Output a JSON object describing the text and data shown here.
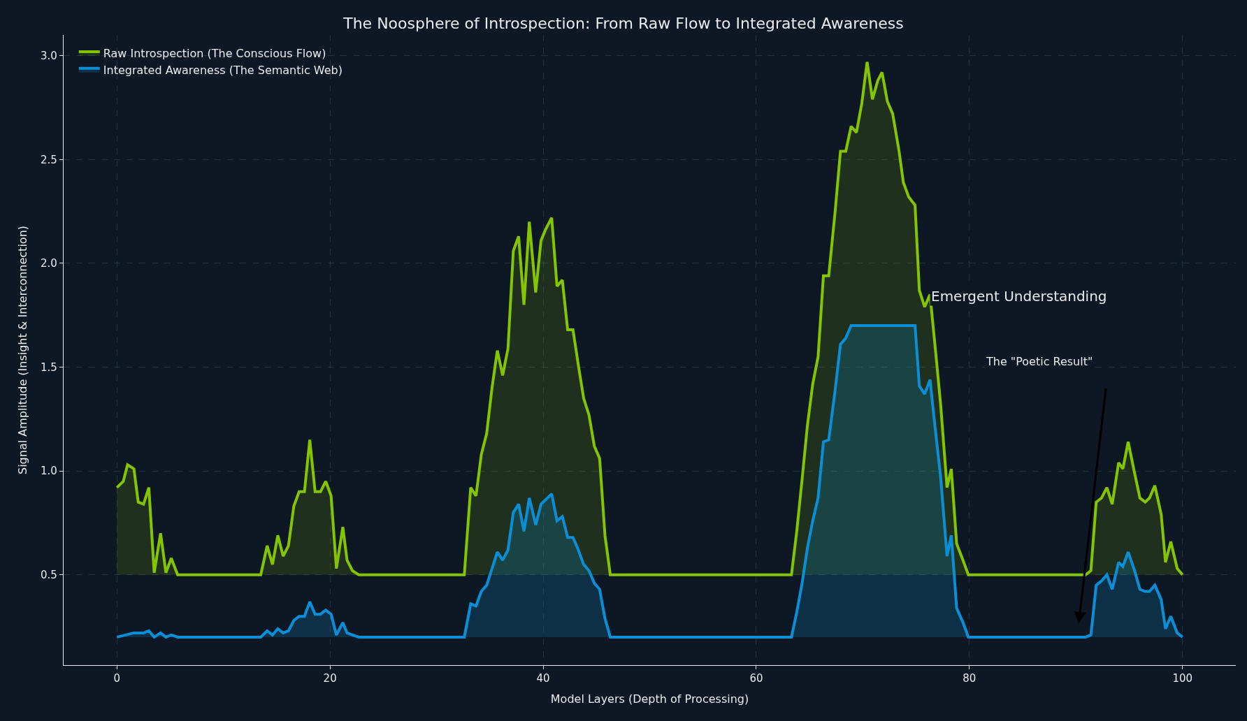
{
  "chart_data": {
    "type": "area",
    "title": "The Noosphere of Introspection: From Raw Flow to Integrated Awareness",
    "xlabel": "Model Layers (Depth of Processing)",
    "ylabel": "Signal Amplitude (Insight & Interconnection)",
    "series": [
      {
        "name": "Raw Introspection (The Conscious Flow)",
        "color": "#84c400",
        "x": [
          0,
          0.6,
          1.0,
          1.6,
          2.0,
          2.5,
          3.0,
          3.5,
          4.1,
          4.6,
          5.1,
          5.7,
          13.5,
          14.1,
          14.6,
          15.1,
          15.6,
          16.1,
          16.6,
          17.1,
          17.6,
          18.1,
          18.6,
          19.1,
          19.6,
          20.1,
          20.6,
          21.2,
          21.6,
          22.1,
          22.7,
          32.6,
          33.2,
          33.7,
          34.2,
          34.7,
          35.2,
          35.7,
          36.2,
          36.7,
          37.2,
          37.7,
          38.2,
          38.7,
          39.3,
          39.8,
          40.2,
          40.8,
          41.3,
          41.8,
          42.3,
          42.8,
          43.3,
          43.8,
          44.3,
          44.8,
          45.3,
          45.8,
          46.3,
          63.3,
          63.8,
          64.3,
          64.8,
          65.3,
          65.8,
          66.3,
          66.8,
          67.4,
          67.9,
          68.4,
          68.9,
          69.4,
          69.9,
          70.4,
          70.9,
          71.4,
          71.8,
          72.3,
          72.8,
          73.4,
          73.8,
          74.3,
          74.9,
          75.3,
          75.8,
          76.3,
          76.8,
          77.3,
          77.9,
          78.3,
          78.8,
          79.4,
          79.9,
          90.9,
          91.4,
          91.9,
          92.4,
          92.9,
          93.4,
          94.0,
          94.4,
          94.9,
          95.5,
          96.0,
          96.5,
          96.9,
          97.4,
          98.0,
          98.4,
          98.9,
          99.5,
          100
        ],
        "values": [
          0.92,
          0.95,
          1.03,
          1.01,
          0.85,
          0.84,
          0.92,
          0.51,
          0.7,
          0.51,
          0.58,
          0.5,
          0.5,
          0.64,
          0.55,
          0.69,
          0.59,
          0.64,
          0.83,
          0.9,
          0.9,
          1.15,
          0.9,
          0.9,
          0.95,
          0.88,
          0.53,
          0.73,
          0.57,
          0.52,
          0.5,
          0.5,
          0.92,
          0.88,
          1.08,
          1.18,
          1.4,
          1.58,
          1.46,
          1.59,
          2.06,
          2.13,
          1.8,
          2.2,
          1.86,
          2.11,
          2.16,
          2.22,
          1.89,
          1.92,
          1.68,
          1.68,
          1.51,
          1.35,
          1.27,
          1.12,
          1.06,
          0.69,
          0.5,
          0.5,
          0.71,
          0.96,
          1.22,
          1.42,
          1.55,
          1.94,
          1.94,
          2.25,
          2.54,
          2.54,
          2.66,
          2.63,
          2.77,
          2.97,
          2.79,
          2.88,
          2.92,
          2.78,
          2.72,
          2.54,
          2.39,
          2.32,
          2.28,
          1.87,
          1.79,
          1.85,
          1.59,
          1.32,
          0.92,
          1.01,
          0.65,
          0.57,
          0.5,
          0.5,
          0.52,
          0.85,
          0.87,
          0.92,
          0.84,
          1.04,
          1.01,
          1.14,
          0.99,
          0.87,
          0.85,
          0.87,
          0.93,
          0.79,
          0.56,
          0.66,
          0.53,
          0.5
        ]
      },
      {
        "name": "Integrated Awareness (The Semantic Web)",
        "color": "#0a8fd6",
        "x": [
          0,
          1.6,
          2.5,
          3.0,
          3.5,
          4.1,
          4.6,
          5.1,
          5.7,
          13.5,
          14.1,
          14.6,
          15.1,
          15.6,
          16.1,
          16.6,
          17.1,
          17.6,
          18.1,
          18.6,
          19.1,
          19.6,
          20.1,
          20.6,
          21.2,
          21.6,
          22.1,
          22.7,
          32.6,
          33.2,
          33.7,
          34.2,
          34.7,
          35.2,
          35.7,
          36.2,
          36.7,
          37.2,
          37.7,
          38.2,
          38.7,
          39.3,
          39.8,
          40.2,
          40.8,
          41.3,
          41.8,
          42.3,
          42.8,
          43.3,
          43.8,
          44.3,
          44.8,
          45.3,
          45.8,
          46.3,
          63.3,
          63.8,
          64.3,
          64.8,
          65.3,
          65.8,
          66.3,
          66.8,
          67.4,
          67.9,
          68.4,
          68.9,
          74.9,
          75.3,
          75.8,
          76.3,
          76.8,
          77.3,
          77.9,
          78.3,
          78.8,
          79.4,
          79.9,
          90.9,
          91.4,
          91.9,
          92.4,
          92.9,
          93.4,
          94.0,
          94.4,
          94.9,
          95.5,
          96.0,
          96.5,
          96.9,
          97.4,
          98.0,
          98.4,
          98.9,
          99.5,
          100
        ],
        "values": [
          0.2,
          0.22,
          0.22,
          0.23,
          0.2,
          0.22,
          0.2,
          0.21,
          0.2,
          0.2,
          0.23,
          0.21,
          0.24,
          0.22,
          0.23,
          0.28,
          0.3,
          0.3,
          0.37,
          0.31,
          0.31,
          0.33,
          0.31,
          0.21,
          0.27,
          0.22,
          0.21,
          0.2,
          0.2,
          0.36,
          0.35,
          0.42,
          0.45,
          0.53,
          0.61,
          0.57,
          0.62,
          0.8,
          0.84,
          0.71,
          0.87,
          0.74,
          0.84,
          0.86,
          0.89,
          0.76,
          0.78,
          0.68,
          0.68,
          0.62,
          0.55,
          0.52,
          0.46,
          0.43,
          0.29,
          0.2,
          0.2,
          0.32,
          0.46,
          0.63,
          0.76,
          0.87,
          1.14,
          1.15,
          1.39,
          1.61,
          1.64,
          1.7,
          1.7,
          1.41,
          1.37,
          1.44,
          1.2,
          0.97,
          0.59,
          0.69,
          0.34,
          0.27,
          0.2,
          0.2,
          0.21,
          0.45,
          0.47,
          0.5,
          0.43,
          0.56,
          0.54,
          0.61,
          0.52,
          0.43,
          0.42,
          0.42,
          0.45,
          0.38,
          0.24,
          0.3,
          0.22,
          0.2
        ]
      }
    ],
    "annotations": [
      "Emergent Understanding",
      "The \"Poetic Result\""
    ],
    "xlim": [
      -5,
      105
    ],
    "ylim": [
      0.065,
      3.1
    ],
    "xticks": [
      0,
      20,
      40,
      60,
      80,
      100
    ],
    "yticks": [
      {
        "value": 0.5,
        "label": "0.5"
      },
      {
        "value": 1,
        "label": "1.0"
      },
      {
        "value": 1.5,
        "label": "1.5"
      },
      {
        "value": 2,
        "label": "2.0"
      },
      {
        "value": 2.5,
        "label": "2.5"
      },
      {
        "value": 3,
        "label": "3.0"
      }
    ],
    "grid": true,
    "legend": "top left",
    "line_style": "solid",
    "marker": "none"
  }
}
